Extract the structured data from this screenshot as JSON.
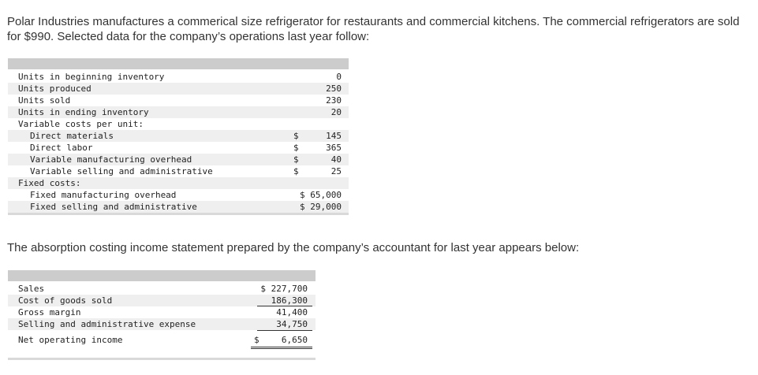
{
  "intro_text": "Polar Industries manufactures a commerical size refrigerator for restaurants and commercial kitchens. The commercial refrigerators are sold for $990. Selected data for the company’s operations last year follow:",
  "data_table": {
    "rows": [
      {
        "label": "Units in beginning inventory",
        "currency": "",
        "value": "0"
      },
      {
        "label": "Units produced",
        "currency": "",
        "value": "250"
      },
      {
        "label": "Units sold",
        "currency": "",
        "value": "230"
      },
      {
        "label": "Units in ending inventory",
        "currency": "",
        "value": "20"
      },
      {
        "label": "Variable costs per unit:",
        "currency": "",
        "value": ""
      },
      {
        "label": "Direct materials",
        "currency": "$",
        "value": "145"
      },
      {
        "label": "Direct labor",
        "currency": "$",
        "value": "365"
      },
      {
        "label": "Variable manufacturing overhead",
        "currency": "$",
        "value": "40"
      },
      {
        "label": "Variable selling and administrative",
        "currency": "$",
        "value": "25"
      },
      {
        "label": "Fixed costs:",
        "currency": "",
        "value": ""
      },
      {
        "label": "Fixed manufacturing overhead",
        "currency": "",
        "value": "$ 65,000"
      },
      {
        "label": "Fixed selling and administrative",
        "currency": "",
        "value": "$ 29,000"
      }
    ]
  },
  "mid_text": "The absorption costing income statement prepared by the company’s accountant for last year appears below:",
  "income_statement": {
    "rows": [
      {
        "label": "Sales",
        "currency": "",
        "value": "$ 227,700"
      },
      {
        "label": "Cost of goods sold",
        "currency": "",
        "value": "186,300"
      },
      {
        "label": "Gross margin",
        "currency": "",
        "value": "41,400"
      },
      {
        "label": "Selling and administrative expense",
        "currency": "",
        "value": "34,750"
      },
      {
        "label": "Net operating income",
        "currency": "$",
        "value": "6,650"
      }
    ]
  }
}
